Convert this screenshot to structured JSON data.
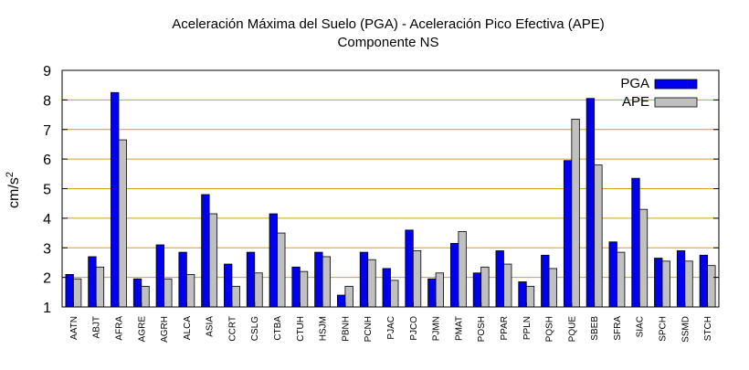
{
  "chart_data": {
    "type": "bar",
    "title": "Aceleración Máxima del Suelo (PGA) -  Aceleración Pico Efectiva (APE)",
    "subtitle": "Componente NS",
    "ylabel": "cm/s",
    "ylabel_exponent": "2",
    "xlabel": "",
    "ylim": [
      1,
      9
    ],
    "yticks": [
      "1",
      "2",
      "3",
      "4",
      "5",
      "6",
      "7",
      "8",
      "9"
    ],
    "grid": "horizontal",
    "legend_position": "top-right",
    "categories": [
      "AATN",
      "ABJT",
      "AFRA",
      "AGRE",
      "AGRH",
      "ALCA",
      "ASIA",
      "CCRT",
      "CSLG",
      "CTBA",
      "CTUH",
      "HSJM",
      "PBNH",
      "PCNH",
      "PJAC",
      "PJCO",
      "PJMN",
      "PMAT",
      "POSH",
      "PPAR",
      "PPLN",
      "PQSH",
      "PQUE",
      "SBEB",
      "SFRA",
      "SIAC",
      "SPCH",
      "SSMD",
      "STCH"
    ],
    "series": [
      {
        "name": "PGA",
        "color": "#0000ee",
        "values": [
          2.1,
          2.7,
          8.25,
          1.95,
          3.1,
          2.85,
          4.8,
          2.45,
          2.85,
          4.15,
          2.35,
          2.85,
          1.4,
          2.85,
          2.3,
          3.6,
          1.95,
          3.15,
          2.15,
          2.9,
          1.85,
          2.75,
          5.95,
          8.05,
          3.2,
          5.35,
          2.65,
          2.9,
          2.75
        ]
      },
      {
        "name": "APE",
        "color": "#c0c0c0",
        "values": [
          1.95,
          2.35,
          6.65,
          1.7,
          1.95,
          2.1,
          4.15,
          1.7,
          2.15,
          3.5,
          2.2,
          2.7,
          1.7,
          2.6,
          1.9,
          2.9,
          2.15,
          3.55,
          2.35,
          2.45,
          1.7,
          2.3,
          7.35,
          5.8,
          2.85,
          4.3,
          2.55,
          2.55,
          2.4
        ]
      }
    ],
    "colors": {
      "grid": "#d4a020",
      "axis": "#000000",
      "bar_outline": "#000000"
    }
  }
}
